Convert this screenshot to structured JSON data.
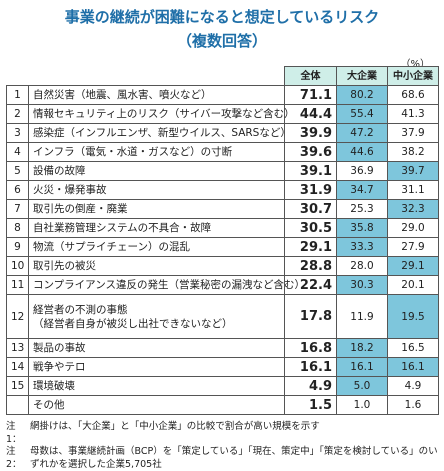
{
  "title": "事業の継続が困難になると想定しているリスク",
  "subtitle": "（複数回答）",
  "unit": "（%）",
  "chart_data": {
    "type": "table",
    "columns": [
      "全体",
      "大企業",
      "中小企業"
    ],
    "rows": [
      {
        "no": "1",
        "label": "自然災害（地震、風水害、噴火など）",
        "total": "71.1",
        "large": "80.2",
        "sme": "68.6",
        "highlight": "large"
      },
      {
        "no": "2",
        "label": "情報セキュリティ上のリスク（サイバー攻撃など含む）",
        "total": "44.4",
        "large": "55.4",
        "sme": "41.3",
        "highlight": "large"
      },
      {
        "no": "3",
        "label": "感染症（インフルエンザ、新型ウイルス、SARSなど）",
        "total": "39.9",
        "large": "47.2",
        "sme": "37.9",
        "highlight": "large"
      },
      {
        "no": "4",
        "label": "インフラ（電気・水道・ガスなど）の寸断",
        "total": "39.6",
        "large": "44.6",
        "sme": "38.2",
        "highlight": "large"
      },
      {
        "no": "5",
        "label": "設備の故障",
        "total": "39.1",
        "large": "36.9",
        "sme": "39.7",
        "highlight": "sme"
      },
      {
        "no": "6",
        "label": "火災・爆発事故",
        "total": "31.9",
        "large": "34.7",
        "sme": "31.1",
        "highlight": "large"
      },
      {
        "no": "7",
        "label": "取引先の倒産・廃業",
        "total": "30.7",
        "large": "25.3",
        "sme": "32.3",
        "highlight": "sme"
      },
      {
        "no": "8",
        "label": "自社業務管理システムの不具合・故障",
        "total": "30.5",
        "large": "35.8",
        "sme": "29.0",
        "highlight": "large"
      },
      {
        "no": "9",
        "label": "物流（サプライチェーン）の混乱",
        "total": "29.1",
        "large": "33.3",
        "sme": "27.9",
        "highlight": "large"
      },
      {
        "no": "10",
        "label": "取引先の被災",
        "total": "28.8",
        "large": "28.0",
        "sme": "29.1",
        "highlight": "sme"
      },
      {
        "no": "11",
        "label": "コンプライアンス違反の発生（営業秘密の漏洩など含む）",
        "total": "22.4",
        "large": "30.3",
        "sme": "20.1",
        "highlight": "large"
      },
      {
        "no": "12",
        "label": "経営者の不測の事態",
        "label2": "（経営者自身が被災し出社できないなど）",
        "total": "17.8",
        "large": "11.9",
        "sme": "19.5",
        "highlight": "sme"
      },
      {
        "no": "13",
        "label": "製品の事故",
        "total": "16.8",
        "large": "18.2",
        "sme": "16.5",
        "highlight": "large"
      },
      {
        "no": "14",
        "label": "戦争やテロ",
        "total": "16.1",
        "large": "16.1",
        "sme": "16.1",
        "highlight": "both"
      },
      {
        "no": "15",
        "label": "環境破壊",
        "total": "4.9",
        "large": "5.0",
        "sme": "4.9",
        "highlight": "large"
      },
      {
        "no": "",
        "label": "その他",
        "total": "1.5",
        "large": "1.0",
        "sme": "1.6",
        "highlight": "none"
      }
    ]
  },
  "notes": [
    {
      "key": "注1：",
      "text": "網掛けは、「大企業」と「中小企業」の比較で割合が高い規模を示す"
    },
    {
      "key": "注2：",
      "text": "母数は、事業継続計画（BCP）を「策定している」「現在、策定中」「策定を検討している」のいずれかを選択した企業5,705社"
    }
  ]
}
